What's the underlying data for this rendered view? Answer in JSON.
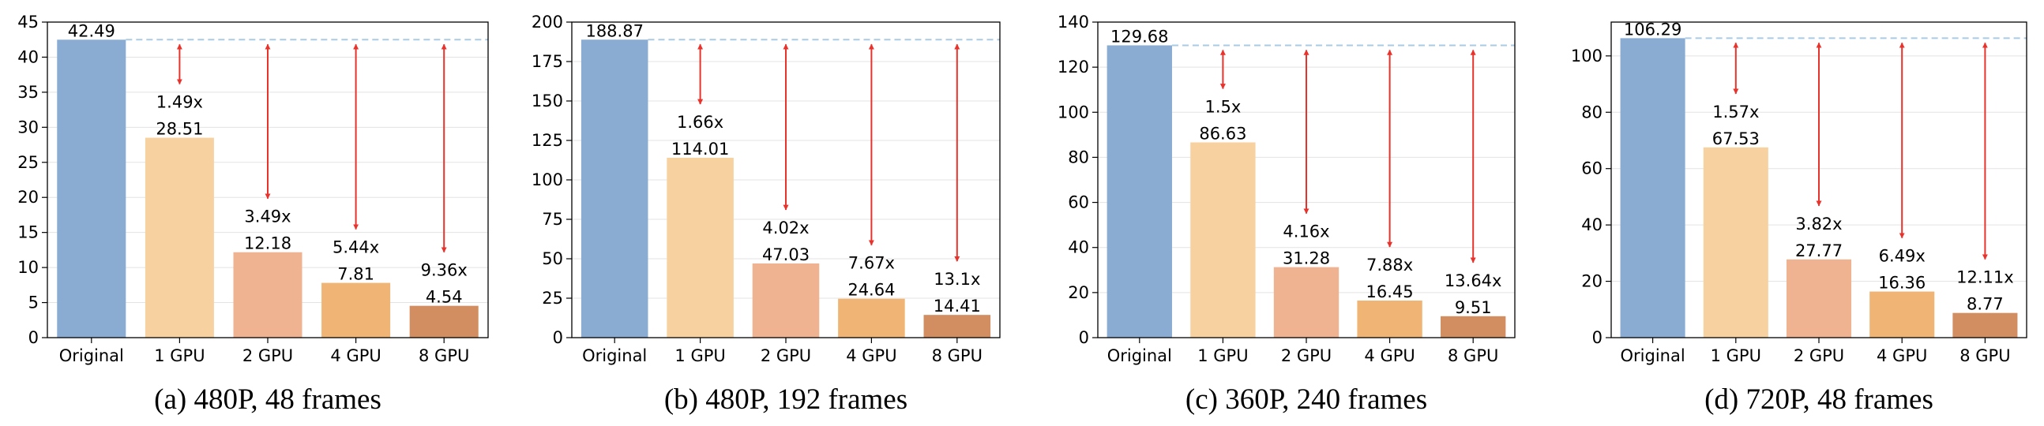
{
  "colors": {
    "bars": [
      "#8aacd3",
      "#f8d1a0",
      "#f0b392",
      "#f0b574",
      "#d28e60"
    ],
    "ref_line": "#a9cbe6",
    "arrow": "#e8322c",
    "grid": "#e3e3e3"
  },
  "chart_data": [
    {
      "type": "bar",
      "caption": "(a) 480P, 48 frames",
      "categories": [
        "Original",
        "1 GPU",
        "2 GPU",
        "4 GPU",
        "8 GPU"
      ],
      "values": [
        42.49,
        28.51,
        12.18,
        7.81,
        4.54
      ],
      "value_labels": [
        "42.49",
        "28.51",
        "12.18",
        "7.81",
        "4.54"
      ],
      "speedups": [
        "1.49x",
        "3.49x",
        "5.44x",
        "9.36x"
      ],
      "ylim": [
        0,
        45
      ],
      "yticks": [
        0,
        5,
        10,
        15,
        20,
        25,
        30,
        35,
        40,
        45
      ],
      "grid": true
    },
    {
      "type": "bar",
      "caption": "(b) 480P, 192 frames",
      "categories": [
        "Original",
        "1 GPU",
        "2 GPU",
        "4 GPU",
        "8 GPU"
      ],
      "values": [
        188.87,
        114.01,
        47.03,
        24.64,
        14.41
      ],
      "value_labels": [
        "188.87",
        "114.01",
        "47.03",
        "24.64",
        "14.41"
      ],
      "speedups": [
        "1.66x",
        "4.02x",
        "7.67x",
        "13.1x"
      ],
      "ylim": [
        0,
        200
      ],
      "yticks": [
        0,
        25,
        50,
        75,
        100,
        125,
        150,
        175,
        200
      ],
      "grid": true
    },
    {
      "type": "bar",
      "caption": "(c) 360P, 240 frames",
      "categories": [
        "Original",
        "1 GPU",
        "2 GPU",
        "4 GPU",
        "8 GPU"
      ],
      "values": [
        129.68,
        86.63,
        31.28,
        16.45,
        9.51
      ],
      "value_labels": [
        "129.68",
        "86.63",
        "31.28",
        "16.45",
        "9.51"
      ],
      "speedups": [
        "1.5x",
        "4.16x",
        "7.88x",
        "13.64x"
      ],
      "ylim": [
        0,
        140
      ],
      "yticks": [
        0,
        20,
        40,
        60,
        80,
        100,
        120,
        140
      ],
      "grid": true
    },
    {
      "type": "bar",
      "caption": "(d) 720P, 48 frames",
      "categories": [
        "Original",
        "1 GPU",
        "2 GPU",
        "4 GPU",
        "8 GPU"
      ],
      "values": [
        106.29,
        67.53,
        27.77,
        16.36,
        8.77
      ],
      "value_labels": [
        "106.29",
        "67.53",
        "27.77",
        "16.36",
        "8.77"
      ],
      "speedups": [
        "1.57x",
        "3.82x",
        "6.49x",
        "12.11x"
      ],
      "ylim": [
        0,
        112
      ],
      "yticks": [
        0,
        20,
        40,
        60,
        80,
        100
      ],
      "grid": true
    }
  ]
}
